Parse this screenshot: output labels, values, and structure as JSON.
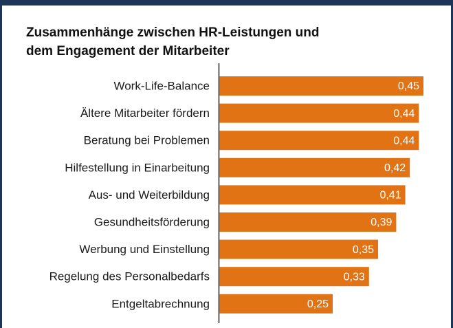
{
  "chart_data": {
    "type": "bar",
    "orientation": "horizontal",
    "title_lines": [
      "Zusammenhänge zwischen HR-Leistungen und",
      "dem Engagement der Mitarbeiter"
    ],
    "categories": [
      "Work-Life-Balance",
      "Ältere Mitarbeiter fördern",
      "Beratung bei Problemen",
      "Hilfestellung in Einarbeitung",
      "Aus- und Weiterbildung",
      "Gesundheitsförderung",
      "Werbung und Einstellung",
      "Regelung des Personalbedarfs",
      "Entgeltabrechnung"
    ],
    "values": [
      0.45,
      0.44,
      0.44,
      0.42,
      0.41,
      0.39,
      0.35,
      0.33,
      0.25
    ],
    "value_labels": [
      "0,45",
      "0,44",
      "0,44",
      "0,42",
      "0,41",
      "0,39",
      "0,35",
      "0,33",
      "0,25"
    ],
    "color": "#e27314",
    "xlim": [
      0,
      0.5
    ]
  }
}
